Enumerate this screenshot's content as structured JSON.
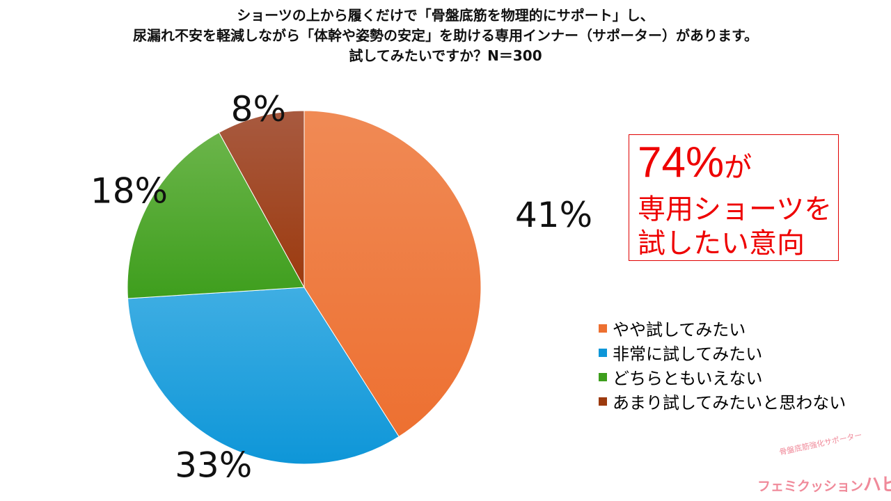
{
  "chart_data": {
    "type": "pie",
    "title_lines": [
      "ショーツの上から履くだけで「骨盤底筋を物理的にサポート」し、",
      "尿漏れ不安を軽減しながら「体幹や姿勢の安定」を助ける専用インナー（サポーター）があります。",
      "試してみたいですか？N＝300"
    ],
    "slices": [
      {
        "label": "やや試してみたい",
        "value": 41,
        "display": "41%",
        "color": "#ED7031",
        "color_light": "#F08A55"
      },
      {
        "label": "非常に試してみたい",
        "value": 33,
        "display": "33%",
        "color": "#0E96D8",
        "color_light": "#3FAEE3"
      },
      {
        "label": "どちらともいえない",
        "value": 18,
        "display": "18%",
        "color": "#3E9E1D",
        "color_light": "#6BB54A"
      },
      {
        "label": "あまり試してみたいと思わない",
        "value": 8,
        "display": "8%",
        "color": "#9C3A0E",
        "color_light": "#A85A40"
      }
    ],
    "legend_position": "right"
  },
  "callout": {
    "big_value": "74%",
    "big_suffix": "が",
    "line2": "専用ショーツを",
    "line3": "試したい意向",
    "color": "#EE0000"
  },
  "logo": {
    "subtitle": "骨盤底筋強化サポーター",
    "name_small": "フェミクッション",
    "name_large": "ハピネス",
    "color": "#F08A9A"
  }
}
